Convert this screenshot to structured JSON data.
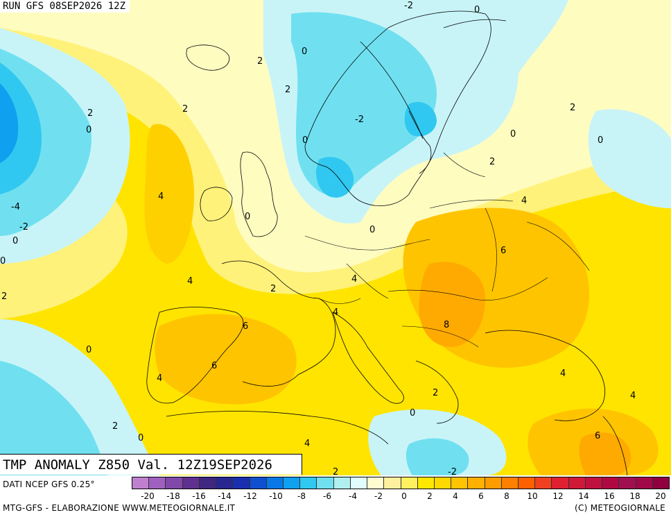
{
  "header": {
    "run_label": "RUN GFS 08SEP2026 12Z"
  },
  "map": {
    "title": "TMP ANOMALY Z850 Val. 12Z19SEP2026",
    "contour_labels": [
      "-2",
      "0",
      "0",
      "2",
      "0",
      "2",
      "2",
      "2",
      "0",
      "-2",
      "0",
      "0",
      "2",
      "2",
      "0",
      "-4",
      "4",
      "-2",
      "0",
      "0",
      "0",
      "4",
      "6",
      "4",
      "2",
      "4",
      "4",
      "2",
      "6",
      "8",
      "0",
      "6",
      "4",
      "4",
      "2",
      "0",
      "4",
      "6",
      "2",
      "0",
      "4",
      "-2",
      "2"
    ]
  },
  "footer": {
    "data_source": "DATI NCEP GFS 0.25°",
    "credit_left": "MTG-GFS - ELABORAZIONE WWW.METEOGIORNALE.IT",
    "credit_right": "(C) METEOGIORNALE",
    "colorbar_ticks": [
      "-20",
      "-18",
      "-16",
      "-14",
      "-12",
      "-10",
      "-8",
      "-6",
      "-4",
      "-2",
      "0",
      "2",
      "4",
      "6",
      "8",
      "10",
      "12",
      "14",
      "16",
      "18",
      "20"
    ],
    "colorbar_colors": [
      "#c080d0",
      "#a060c0",
      "#8048a8",
      "#603090",
      "#402880",
      "#282890",
      "#1830b0",
      "#1050d0",
      "#0878e8",
      "#10a0f0",
      "#30c8f0",
      "#70e0f0",
      "#b0f0f0",
      "#e0fcfc",
      "#fffcd0",
      "#fff0a0",
      "#fff060",
      "#ffe800",
      "#ffd800",
      "#ffc400",
      "#ffb000",
      "#ff9c00",
      "#ff8000",
      "#ff6000",
      "#f04020",
      "#e02030",
      "#d01838",
      "#c01040",
      "#b00840",
      "#a01050",
      "#a00848",
      "#900040"
    ]
  }
}
